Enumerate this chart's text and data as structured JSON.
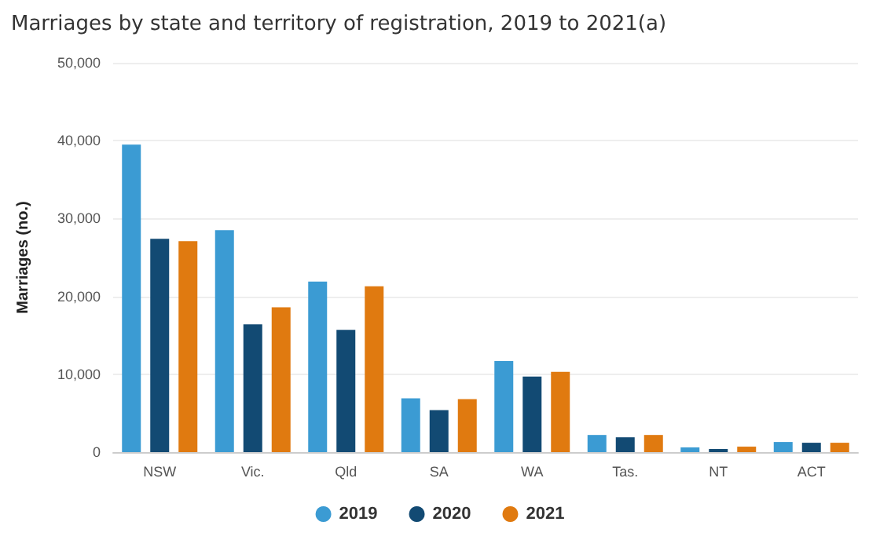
{
  "chart_data": {
    "type": "bar",
    "title": "Marriages by state and territory of registration, 2019 to 2021(a)",
    "ylabel": "Marriages (no.)",
    "categories": [
      "NSW",
      "Vic.",
      "Qld",
      "SA",
      "WA",
      "Tas.",
      "NT",
      "ACT"
    ],
    "series": [
      {
        "name": "2019",
        "color": "#3b9bd3",
        "values": [
          39500,
          28500,
          21900,
          6900,
          11700,
          2200,
          600,
          1300
        ]
      },
      {
        "name": "2020",
        "color": "#124a73",
        "values": [
          27400,
          16400,
          15700,
          5400,
          9700,
          1900,
          400,
          1200
        ]
      },
      {
        "name": "2021",
        "color": "#e07a10",
        "values": [
          27100,
          18600,
          21300,
          6800,
          10300,
          2200,
          700,
          1200
        ]
      }
    ],
    "ylim": [
      0,
      50000
    ],
    "yticks": [
      0,
      {
        "value": 10000,
        "label": "10,000"
      },
      {
        "value": 20000,
        "label": "20,000"
      },
      {
        "value": 30000,
        "label": "30,000"
      },
      {
        "value": 40000,
        "label": "40,000"
      },
      {
        "value": 50000,
        "label": "50,000"
      }
    ],
    "grid": "y",
    "legend": "bottom"
  }
}
